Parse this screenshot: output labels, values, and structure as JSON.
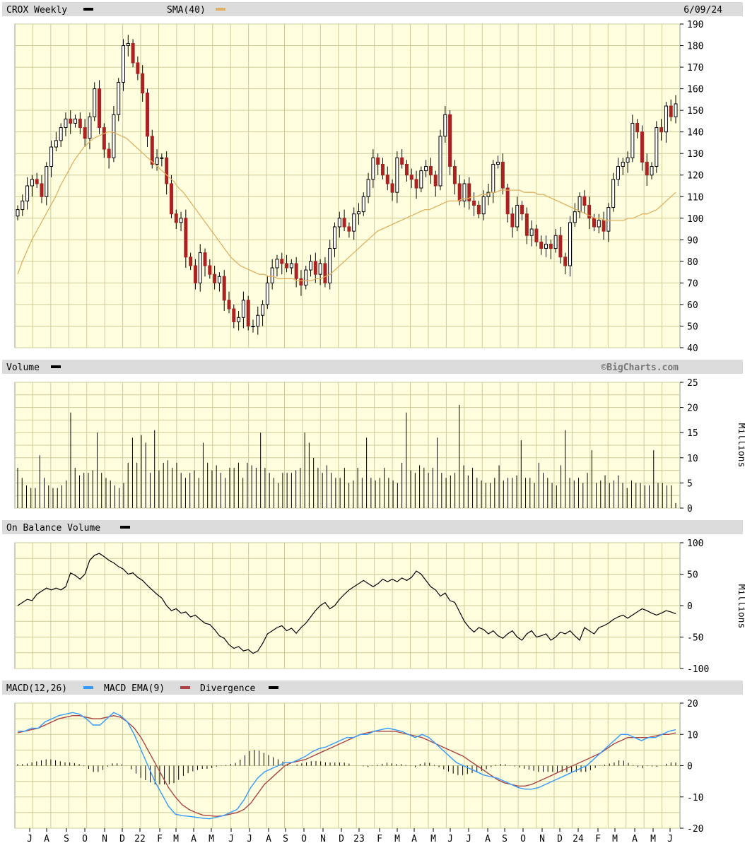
{
  "header": {
    "symbol_label": "CROX Weekly",
    "sma_label": "SMA(40)",
    "date": "6/09/24"
  },
  "volume_panel": {
    "label": "Volume",
    "watermark": "©BigCharts.com",
    "unit": "Millions"
  },
  "obv_panel": {
    "label": "On Balance Volume",
    "unit": "Millions"
  },
  "macd_panel": {
    "macd_label": "MACD(12,26)",
    "ema_label": "MACD EMA(9)",
    "div_label": "Divergence"
  },
  "colors": {
    "background": "#ffffe0",
    "grid": "#cccc99",
    "header_bar": "#dcdcdc",
    "up_candle": "#000000",
    "down_candle": "#aa2222",
    "sma": "#e0b060",
    "macd": "#3399ff",
    "macd_ema": "#aa4444",
    "obv": "#000000",
    "volume": "#000000"
  },
  "chart_data": [
    {
      "type": "candlestick",
      "title": "CROX Weekly",
      "ylim": [
        40,
        190
      ],
      "y_ticks": [
        "190",
        "180",
        "170",
        "160",
        "150",
        "140",
        "130",
        "120",
        "110",
        "100",
        "90",
        "80",
        "70",
        "60",
        "50",
        "40"
      ],
      "x_tick_labels": [
        "J",
        "A",
        "S",
        "O",
        "N",
        "D",
        "22",
        "F",
        "M",
        "A",
        "M",
        "J",
        "J",
        "A",
        "S",
        "O",
        "N",
        "D",
        "23",
        "F",
        "M",
        "A",
        "M",
        "J",
        "J",
        "A",
        "S",
        "O",
        "N",
        "D",
        "24",
        "F",
        "M",
        "A",
        "M",
        "J"
      ],
      "close": [
        104,
        108,
        115,
        118,
        116,
        110,
        124,
        133,
        136,
        142,
        146,
        144,
        146,
        142,
        137,
        147,
        160,
        142,
        132,
        128,
        148,
        163,
        180,
        181,
        172,
        167,
        158,
        138,
        125,
        128,
        128,
        116,
        102,
        98,
        100,
        82,
        78,
        70,
        84,
        78,
        74,
        70,
        73,
        62,
        58,
        52,
        54,
        62,
        50,
        50,
        55,
        60,
        70,
        77,
        81,
        79,
        77,
        79,
        72,
        69,
        76,
        80,
        74,
        79,
        70,
        86,
        96,
        100,
        96,
        94,
        102,
        103,
        110,
        118,
        128,
        125,
        120,
        116,
        112,
        128,
        125,
        120,
        118,
        114,
        122,
        124,
        120,
        115,
        138,
        148,
        124,
        116,
        108,
        116,
        108,
        106,
        102,
        110,
        112,
        125,
        126,
        114,
        102,
        96,
        106,
        102,
        92,
        95,
        89,
        86,
        88,
        86,
        92,
        82,
        78,
        98,
        103,
        110,
        106,
        100,
        96,
        99,
        94,
        105,
        118,
        124,
        126,
        128,
        144,
        140,
        126,
        120,
        124,
        142,
        140,
        152,
        147,
        153
      ],
      "sma": [
        74,
        80,
        85,
        90,
        94,
        98,
        102,
        106,
        110,
        115,
        119,
        123,
        127,
        130,
        133,
        135,
        137,
        138,
        139,
        140,
        140,
        139,
        138,
        137,
        135,
        133,
        131,
        129,
        127,
        125,
        123,
        121,
        119,
        117,
        114,
        112,
        109,
        106,
        103,
        100,
        97,
        94,
        91,
        88,
        85,
        82,
        80,
        78,
        77,
        76,
        75,
        74,
        74,
        73,
        73,
        72,
        72,
        72,
        72,
        71,
        71,
        71,
        71,
        72,
        72,
        73,
        74,
        76,
        78,
        80,
        82,
        84,
        86,
        88,
        90,
        92,
        94,
        95,
        96,
        97,
        98,
        99,
        100,
        101,
        102,
        103,
        104,
        104,
        105,
        106,
        107,
        108,
        108,
        108,
        109,
        109,
        110,
        110,
        111,
        111,
        112,
        112,
        113,
        113,
        113,
        113,
        113,
        112,
        112,
        112,
        111,
        111,
        110,
        109,
        108,
        107,
        106,
        105,
        104,
        103,
        102,
        101,
        100,
        100,
        99,
        99,
        99,
        99,
        99,
        100,
        100,
        101,
        102,
        102,
        103,
        104,
        106,
        108,
        110,
        112
      ]
    },
    {
      "type": "bar",
      "title": "Volume",
      "ylabel": "Millions",
      "ylim": [
        0,
        25
      ],
      "y_ticks": [
        "25",
        "20",
        "15",
        "10",
        "5",
        "0"
      ],
      "values": [
        8,
        6,
        4.5,
        4,
        4,
        10.5,
        6,
        4.5,
        4,
        4,
        4.5,
        5.5,
        19,
        8,
        6.5,
        7,
        7,
        7.5,
        15,
        7,
        6,
        5.5,
        4.5,
        4,
        5,
        9,
        14,
        9,
        14.5,
        13,
        7,
        15.5,
        7.5,
        9,
        9.5,
        8,
        9,
        7,
        6,
        7,
        7.5,
        6,
        13,
        9,
        7.5,
        8.5,
        7,
        6,
        8,
        8,
        9,
        6,
        9,
        8.5,
        8,
        15,
        8,
        7,
        6,
        5,
        7,
        7,
        7,
        7.5,
        8,
        15,
        13,
        10,
        8,
        7,
        8.5,
        7,
        6,
        6,
        8,
        5,
        5.5,
        8,
        6,
        14,
        6,
        5.5,
        6,
        8,
        6,
        5.5,
        5,
        9,
        19,
        7.5,
        7,
        8.5,
        8,
        7,
        8,
        14,
        7,
        6,
        6.5,
        7,
        20.5,
        8.5,
        6.5,
        8,
        6,
        5.5,
        5,
        5,
        6,
        8.5,
        5.5,
        6,
        6,
        6.5,
        13.5,
        6,
        6,
        5,
        9,
        7,
        6,
        5,
        4.5,
        8.5,
        15.5,
        6,
        5.5,
        6,
        5,
        7,
        11.5,
        5,
        5.5,
        6.5,
        5,
        5.5,
        6.5,
        5,
        4,
        5.5,
        5,
        5,
        4.5,
        4.5,
        11.5,
        5,
        5,
        4.5,
        4.5,
        1
      ],
      "x_tick_labels": [
        "J",
        "A",
        "S",
        "O",
        "N",
        "D",
        "22",
        "F",
        "M",
        "A",
        "M",
        "J",
        "J",
        "A",
        "S",
        "O",
        "N",
        "D",
        "23",
        "F",
        "M",
        "A",
        "M",
        "J",
        "J",
        "A",
        "S",
        "O",
        "N",
        "D",
        "24",
        "F",
        "M",
        "A",
        "M",
        "J"
      ]
    },
    {
      "type": "line",
      "title": "On Balance Volume",
      "ylabel": "Millions",
      "ylim": [
        -100,
        100
      ],
      "y_ticks": [
        "100",
        "50",
        "0",
        "-50",
        "-100"
      ],
      "values": [
        0,
        5,
        10,
        8,
        18,
        23,
        28,
        25,
        28,
        25,
        30,
        52,
        48,
        42,
        50,
        72,
        80,
        83,
        78,
        72,
        68,
        62,
        58,
        50,
        52,
        45,
        40,
        32,
        25,
        18,
        12,
        0,
        -8,
        -5,
        -12,
        -10,
        -18,
        -15,
        -22,
        -28,
        -30,
        -38,
        -48,
        -52,
        -62,
        -68,
        -65,
        -72,
        -70,
        -76,
        -72,
        -60,
        -45,
        -40,
        -35,
        -32,
        -40,
        -36,
        -44,
        -35,
        -28,
        -18,
        -8,
        0,
        5,
        -5,
        0,
        10,
        18,
        25,
        30,
        35,
        40,
        35,
        30,
        35,
        42,
        38,
        42,
        38,
        44,
        40,
        45,
        55,
        50,
        40,
        30,
        25,
        15,
        20,
        8,
        5,
        -10,
        -25,
        -35,
        -42,
        -35,
        -38,
        -45,
        -40,
        -48,
        -52,
        -45,
        -40,
        -50,
        -55,
        -45,
        -40,
        -50,
        -48,
        -45,
        -55,
        -50,
        -42,
        -45,
        -40,
        -48,
        -55,
        -35,
        -40,
        -45,
        -35,
        -32,
        -28,
        -22,
        -18,
        -15,
        -20,
        -15,
        -10,
        -5,
        -8,
        -12,
        -15,
        -12,
        -8,
        -10,
        -13
      ],
      "x_tick_labels": [
        "J",
        "A",
        "S",
        "O",
        "N",
        "D",
        "22",
        "F",
        "M",
        "A",
        "M",
        "J",
        "J",
        "A",
        "S",
        "O",
        "N",
        "D",
        "23",
        "F",
        "M",
        "A",
        "M",
        "J",
        "J",
        "A",
        "S",
        "O",
        "N",
        "D",
        "24",
        "F",
        "M",
        "A",
        "M",
        "J"
      ]
    },
    {
      "type": "line",
      "title": "MACD(12,26)",
      "ylim": [
        -20,
        20
      ],
      "y_ticks": [
        "20",
        "10",
        "0",
        "-10",
        "-20"
      ],
      "series": [
        {
          "name": "MACD(12,26)",
          "values": [
            11,
            11,
            12,
            12,
            14,
            15,
            16,
            16.5,
            17,
            16.5,
            15,
            13,
            13,
            15,
            17,
            16,
            14,
            10,
            5,
            0,
            -5,
            -9,
            -13,
            -15.5,
            -16,
            -16.2,
            -16.5,
            -16.8,
            -17,
            -16.5,
            -16,
            -15,
            -14,
            -11,
            -7,
            -4,
            -2,
            -1,
            0,
            1,
            1,
            2,
            3,
            4.5,
            5.5,
            6,
            7,
            8,
            9,
            9,
            10,
            10,
            11,
            11.5,
            12,
            11.5,
            11,
            10,
            9,
            10,
            9,
            7,
            5,
            3,
            1,
            0,
            -1,
            -2,
            -3,
            -3.5,
            -4,
            -5,
            -6,
            -7,
            -7.5,
            -7.5,
            -7,
            -6,
            -5,
            -4,
            -3,
            -2,
            -1,
            0,
            2,
            4,
            6,
            8,
            10,
            10,
            9,
            8,
            9,
            9,
            10,
            11,
            11.5
          ]
        },
        {
          "name": "MACD EMA(9)",
          "values": [
            10.5,
            11,
            11.5,
            12,
            13,
            14,
            15,
            15.5,
            16,
            16,
            15.5,
            15,
            15,
            15.5,
            16,
            15.5,
            14,
            12,
            9,
            5,
            1,
            -3,
            -7,
            -10,
            -12.5,
            -14,
            -15,
            -15.8,
            -16,
            -16.2,
            -16,
            -15.5,
            -15,
            -14,
            -12,
            -9,
            -6,
            -4,
            -2,
            0,
            1,
            1.5,
            2,
            3,
            4,
            5,
            6,
            7,
            8,
            9,
            10,
            10.5,
            11,
            11,
            11,
            11,
            10.5,
            10,
            9.5,
            9,
            8,
            7,
            6,
            5,
            4,
            3,
            1.5,
            0,
            -1.5,
            -3,
            -4.5,
            -5.5,
            -6,
            -6.5,
            -6.5,
            -6,
            -5,
            -4,
            -3,
            -2,
            -1,
            0,
            1,
            2,
            3,
            4,
            5.5,
            7,
            8,
            9,
            9,
            9,
            9,
            9.5,
            10,
            10,
            10.5
          ]
        },
        {
          "name": "Divergence",
          "values": [
            0.5,
            0.5,
            1,
            1.5,
            2,
            2,
            1.5,
            1,
            1,
            0.5,
            -0.5,
            -2,
            -2,
            -0.5,
            1,
            0.5,
            0,
            -2,
            -4,
            -5,
            -6,
            -6,
            -6,
            -5.5,
            -3.5,
            -2.2,
            -1.5,
            -1,
            -1,
            -0.3,
            0,
            0.5,
            1,
            3,
            5,
            5,
            4,
            3,
            2,
            1,
            0,
            0.5,
            1,
            1.5,
            1.5,
            1,
            1,
            1,
            1,
            0,
            0,
            -0.5,
            0,
            0.5,
            1,
            0.5,
            0.5,
            0,
            -0.5,
            1,
            1,
            0,
            -1,
            -2,
            -3,
            -3,
            -2.5,
            -2,
            -1.5,
            -0.5,
            0.5,
            0.5,
            0,
            -0.5,
            -1,
            -1.5,
            -2,
            -2,
            -2,
            -2,
            -2,
            -2,
            -2,
            -2,
            -1,
            0,
            0.5,
            1,
            2,
            1,
            0,
            -1,
            0,
            -0.5,
            0,
            1,
            1
          ]
        }
      ],
      "x_tick_labels": [
        "J",
        "A",
        "S",
        "O",
        "N",
        "D",
        "22",
        "F",
        "M",
        "A",
        "M",
        "J",
        "J",
        "A",
        "S",
        "O",
        "N",
        "D",
        "23",
        "F",
        "M",
        "A",
        "M",
        "J",
        "J",
        "A",
        "S",
        "O",
        "N",
        "D",
        "24",
        "F",
        "M",
        "A",
        "M",
        "J"
      ]
    }
  ]
}
